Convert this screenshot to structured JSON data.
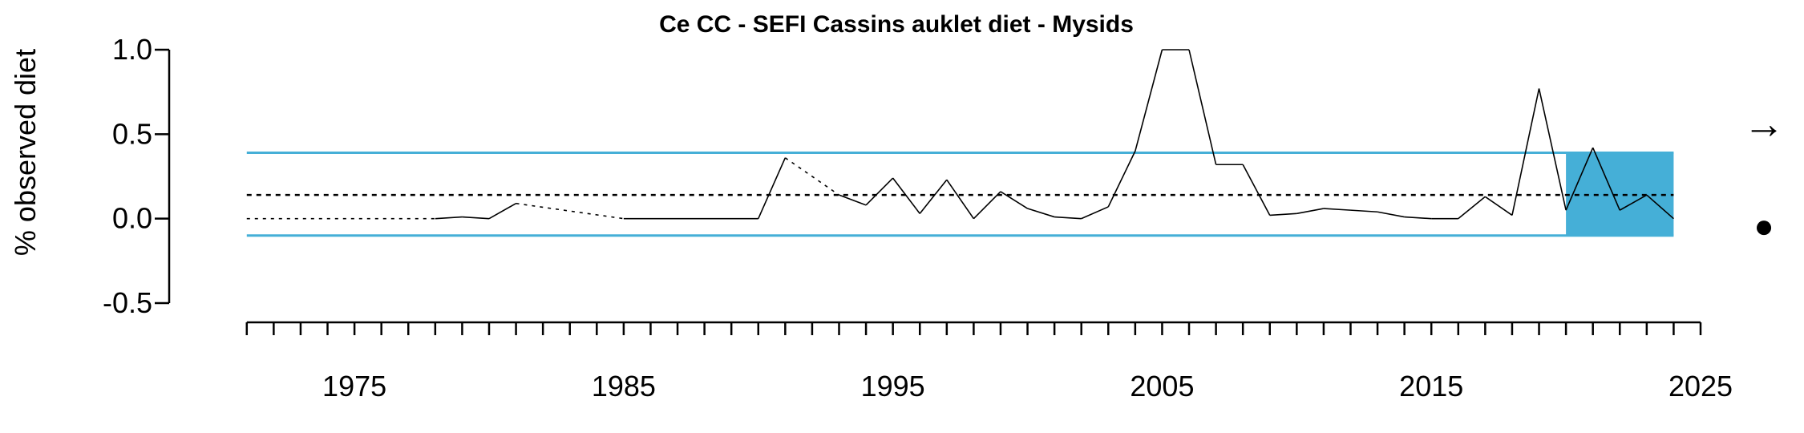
{
  "chart_data": {
    "type": "line",
    "title": "Ce CC - SEFI Cassins auklet diet - Mysids",
    "xlabel": "",
    "ylabel": "% observed diet",
    "xlim": [
      1970.5,
      2025
    ],
    "ylim": [
      -0.5,
      1.0
    ],
    "x_ticks": [
      1975,
      1985,
      1995,
      2005,
      2015,
      2025
    ],
    "y_ticks": [
      -0.5,
      0.0,
      0.5,
      1.0
    ],
    "y_tick_labels": [
      "-0.5",
      "0.0",
      "0.5",
      "1.0"
    ],
    "series": [
      {
        "points": [
          [
            1971,
            0.0
          ],
          [
            1978,
            0.0
          ],
          [
            1979,
            0.01
          ],
          [
            1980,
            0.0
          ],
          [
            1981,
            0.09
          ],
          [
            1985,
            0.0
          ],
          [
            1990,
            0.0
          ],
          [
            1991,
            0.36
          ],
          [
            1993,
            0.14
          ],
          [
            1994,
            0.08
          ],
          [
            1995,
            0.24
          ],
          [
            1996,
            0.03
          ],
          [
            1997,
            0.23
          ],
          [
            1998,
            0.0
          ],
          [
            1999,
            0.16
          ],
          [
            2000,
            0.06
          ],
          [
            2001,
            0.01
          ],
          [
            2002,
            0.0
          ],
          [
            2003,
            0.07
          ],
          [
            2004,
            0.4
          ],
          [
            2005,
            1.0
          ],
          [
            2006,
            1.0
          ],
          [
            2007,
            0.32
          ],
          [
            2008,
            0.32
          ],
          [
            2009,
            0.02
          ],
          [
            2010,
            0.03
          ],
          [
            2011,
            0.06
          ],
          [
            2012,
            0.05
          ],
          [
            2013,
            0.04
          ],
          [
            2014,
            0.01
          ],
          [
            2015,
            0.0
          ],
          [
            2016,
            0.0
          ],
          [
            2017,
            0.13
          ],
          [
            2018,
            0.02
          ],
          [
            2019,
            0.77
          ],
          [
            2020,
            0.05
          ],
          [
            2021,
            0.42
          ],
          [
            2022,
            0.05
          ],
          [
            2023,
            0.14
          ],
          [
            2024,
            0.0
          ]
        ],
        "dashed_segments": [
          [
            1971,
            1978
          ],
          [
            1981,
            1985
          ],
          [
            1991,
            1993
          ]
        ]
      }
    ],
    "mean": 0.14,
    "sd_upper": 0.39,
    "sd_lower": -0.1,
    "recent_window": [
      2020,
      2024
    ],
    "colors": {
      "band": "#45afd7",
      "line": "#000000"
    },
    "trend_symbol": "→",
    "mean_symbol": "●",
    "grid": false,
    "legend": "none"
  }
}
